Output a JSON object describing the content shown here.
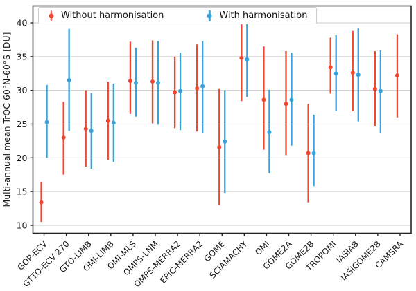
{
  "figure": {
    "ylabel": "Multi-annual mean TrOC 60°N-60°S [DU]",
    "legend": {
      "without": "Without harmonisation",
      "with": "With harmonisation"
    }
  },
  "chart_data": {
    "type": "scatter",
    "subtype": "errorbar",
    "title": "",
    "xlabel": "",
    "ylabel": "Multi-annual mean TrOC 60°N-60°S [DU]",
    "categories": [
      "GOP-ECV",
      "GTTO-ECV 270",
      "GTO-LIMB",
      "OMI-LIMB",
      "OMI-MLS",
      "OMPS-LNM",
      "OMPS-MERRA2",
      "EPIC-MERRA2",
      "GOME",
      "SCIAMACHY",
      "OMI",
      "GOME2A",
      "GOME2B",
      "TROPOMI",
      "IASIAB",
      "IASIGOME2B",
      "CAMSRA"
    ],
    "yticks": [
      10,
      15,
      20,
      25,
      30,
      35,
      40
    ],
    "ylim": [
      8.8,
      42.6
    ],
    "grid": true,
    "legend_position": "upper center horizontal",
    "colors": {
      "grid": "#cccccc",
      "spine": "#262626"
    },
    "series": [
      {
        "name": "Without harmonisation",
        "color": "#f04634",
        "points": [
          {
            "y": 13.4,
            "lo": 10.5,
            "hi": 16.4
          },
          {
            "y": 23.0,
            "lo": 17.5,
            "hi": 28.3
          },
          {
            "y": 24.3,
            "lo": 18.7,
            "hi": 30.0
          },
          {
            "y": 25.5,
            "lo": 19.7,
            "hi": 31.3
          },
          {
            "y": 31.4,
            "lo": 26.5,
            "hi": 37.2
          },
          {
            "y": 31.3,
            "lo": 25.1,
            "hi": 37.4
          },
          {
            "y": 29.7,
            "lo": 24.4,
            "hi": 35.0
          },
          {
            "y": 30.3,
            "lo": 23.9,
            "hi": 36.8
          },
          {
            "y": 21.6,
            "lo": 13.0,
            "hi": 30.2
          },
          {
            "y": 34.8,
            "lo": 28.4,
            "hi": 40.3
          },
          {
            "y": 28.6,
            "lo": 21.2,
            "hi": 36.5
          },
          {
            "y": 28.0,
            "lo": 20.4,
            "hi": 35.8
          },
          {
            "y": 20.7,
            "lo": 13.4,
            "hi": 28.0
          },
          {
            "y": 33.4,
            "lo": 29.5,
            "hi": 37.8
          },
          {
            "y": 32.6,
            "lo": 26.9,
            "hi": 38.8
          },
          {
            "y": 30.2,
            "lo": 24.7,
            "hi": 35.8
          },
          {
            "y": 32.2,
            "lo": 26.0,
            "hi": 38.3
          }
        ]
      },
      {
        "name": "With harmonisation",
        "color": "#38a2d9",
        "points": [
          {
            "y": 25.3,
            "lo": 20.0,
            "hi": 30.8
          },
          {
            "y": 31.5,
            "lo": 24.0,
            "hi": 39.1
          },
          {
            "y": 24.0,
            "lo": 18.4,
            "hi": 29.6
          },
          {
            "y": 25.2,
            "lo": 19.4,
            "hi": 31.0
          },
          {
            "y": 31.1,
            "lo": 26.1,
            "hi": 36.3
          },
          {
            "y": 31.1,
            "lo": 24.9,
            "hi": 37.3
          },
          {
            "y": 29.9,
            "lo": 24.1,
            "hi": 35.6
          },
          {
            "y": 30.6,
            "lo": 23.7,
            "hi": 37.3
          },
          {
            "y": 22.4,
            "lo": 14.8,
            "hi": 30.0
          },
          {
            "y": 34.6,
            "lo": 29.0,
            "hi": 40.0
          },
          {
            "y": 23.8,
            "lo": 17.7,
            "hi": 30.1
          },
          {
            "y": 28.6,
            "lo": 21.8,
            "hi": 35.6
          },
          {
            "y": 20.7,
            "lo": 15.8,
            "hi": 26.4
          },
          {
            "y": 32.5,
            "lo": 26.9,
            "hi": 38.2
          },
          {
            "y": 32.3,
            "lo": 25.4,
            "hi": 39.2
          },
          {
            "y": 29.9,
            "lo": 23.7,
            "hi": 35.9
          },
          null
        ]
      }
    ]
  }
}
